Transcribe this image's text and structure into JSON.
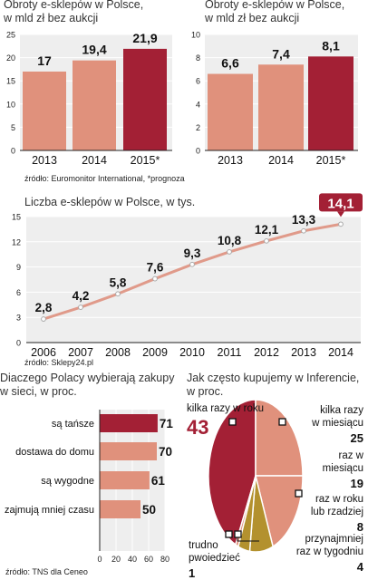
{
  "colors": {
    "bar": "#e0917c",
    "bar_highlight": "#a32035",
    "panel": "#eeeeee",
    "line": "#e09a8a",
    "dark": "#222222",
    "olive": "#b3912e"
  },
  "chart_data": [
    {
      "type": "bar",
      "title": "Obroty e-sklepów w Polsce,",
      "subtitle": "w mld zł bez aukcji",
      "categories": [
        "2013",
        "2014",
        "2015*"
      ],
      "values": [
        17,
        19.4,
        21.9
      ],
      "value_labels": [
        "17",
        "19,4",
        "21,9"
      ],
      "ylim": [
        0,
        25
      ],
      "yticks": [
        "0",
        "5",
        "10",
        "15",
        "20",
        "25"
      ],
      "highlight": "2015*"
    },
    {
      "type": "bar",
      "title": "Obroty e-sklepów w Polsce,",
      "subtitle": "w mld zł bez aukcji",
      "categories": [
        "2013",
        "2014",
        "2015*"
      ],
      "values": [
        6.6,
        7.4,
        8.1
      ],
      "value_labels": [
        "6,6",
        "7,4",
        "8,1"
      ],
      "ylim": [
        0,
        10
      ],
      "yticks": [
        "0",
        "2",
        "4",
        "6",
        "8",
        "10"
      ],
      "highlight": "2015*"
    },
    {
      "type": "line",
      "title": "Liczba e-sklepów w Polsce, w tys.",
      "x": [
        "2006",
        "2007",
        "2008",
        "2009",
        "2010",
        "2011",
        "2012",
        "2013",
        "2014"
      ],
      "values": [
        2.8,
        4.2,
        5.8,
        7.6,
        9.3,
        10.8,
        12.1,
        13.3,
        14.1
      ],
      "value_labels": [
        "2,8",
        "4,2",
        "5,8",
        "7,6",
        "9,3",
        "10,8",
        "12,1",
        "13,3",
        "14,1"
      ],
      "ylim": [
        0,
        15
      ],
      "yticks": [
        "0",
        "3",
        "6",
        "9",
        "12",
        "15"
      ],
      "highlight": "2014"
    },
    {
      "type": "bar",
      "orientation": "horizontal",
      "title": "Diaczego Polacy wybierają zakupy",
      "subtitle": "w sieci, w proc.",
      "categories": [
        "są tańsze",
        "dostawa do domu",
        "są wygodne",
        "zajmują mniej czasu"
      ],
      "values": [
        71,
        70,
        61,
        50
      ],
      "value_labels": [
        "71",
        "70",
        "61",
        "50"
      ],
      "xlim": [
        0,
        80
      ],
      "xticks": [
        "0",
        "20",
        "40",
        "60",
        "80"
      ],
      "highlight": "są tańsze"
    },
    {
      "type": "pie",
      "title": "Jak często kupujemy w Inferencie,",
      "subtitle": "w proc.",
      "labels": [
        "kilka razy w roku",
        "kilka razy w miesiącu",
        "raz w miesiącu",
        "raz w roku lub rzadziej",
        "przynajmniej raz w tygodniu",
        "trudno powiedzieć"
      ],
      "values": [
        43,
        25,
        19,
        8,
        4,
        1
      ],
      "value_labels": [
        "43",
        "25",
        "19",
        "8",
        "4",
        "1"
      ]
    }
  ],
  "sources": {
    "top": "źródło: Euromonitor International, *prognoza",
    "middle": "źródło: Sklepy24.pl",
    "bottom": "źródło: TNS dla Ceneo"
  }
}
